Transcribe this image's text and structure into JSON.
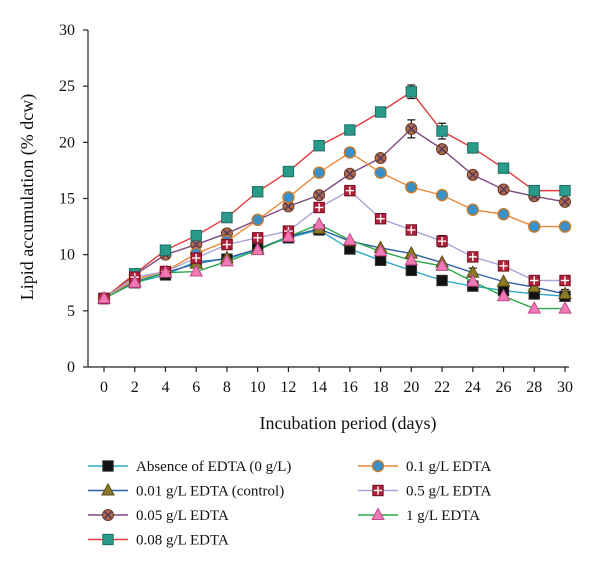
{
  "chart_data": {
    "type": "line",
    "title": "",
    "xlabel": "Incubation period (days)",
    "ylabel": "Lipid accumulation (% dcw)",
    "xlim": [
      0,
      30
    ],
    "ylim": [
      0,
      30
    ],
    "xticks": [
      0,
      2,
      4,
      6,
      8,
      10,
      12,
      14,
      16,
      18,
      20,
      22,
      24,
      26,
      28,
      30
    ],
    "yticks": [
      0,
      5,
      10,
      15,
      20,
      25,
      30
    ],
    "grid": false,
    "legend_position": "bottom",
    "x": [
      0,
      2,
      4,
      6,
      8,
      10,
      12,
      14,
      16,
      18,
      20,
      22,
      24,
      26,
      28,
      30
    ],
    "series": [
      {
        "name": "Absence of EDTA (0 g/L)",
        "marker": "square",
        "line_color": "#2aa9c9",
        "marker_fill": "#111111",
        "marker_stroke": "#333333",
        "values": [
          6.1,
          7.5,
          8.2,
          9.4,
          9.6,
          10.5,
          11.5,
          12.2,
          10.5,
          9.5,
          8.6,
          7.7,
          7.2,
          6.8,
          6.5,
          6.3
        ]
      },
      {
        "name": "0.01 g/L EDTA (control)",
        "marker": "triangle",
        "line_color": "#2f5fa3",
        "marker_fill": "#8b7a2a",
        "marker_stroke": "#5a4a10",
        "values": [
          6.1,
          7.6,
          8.4,
          9.2,
          9.7,
          10.5,
          11.6,
          12.3,
          11.2,
          10.6,
          10.1,
          9.3,
          8.4,
          7.6,
          7.1,
          6.5
        ]
      },
      {
        "name": "0.05 g/L EDTA",
        "marker": "x-circle",
        "line_color": "#7d4a80",
        "marker_fill": "#b06c4a",
        "marker_stroke": "#6a3a28",
        "values": [
          6.1,
          8.2,
          10.0,
          10.9,
          11.9,
          13.1,
          14.3,
          15.3,
          17.2,
          18.6,
          21.2,
          19.4,
          17.1,
          15.8,
          15.2,
          14.7
        ]
      },
      {
        "name": "0.08 g/L EDTA",
        "marker": "square",
        "line_color": "#e03a3a",
        "marker_fill": "#2a9a8a",
        "marker_stroke": "#1e6e62",
        "values": [
          6.1,
          8.3,
          10.4,
          11.7,
          13.3,
          15.6,
          17.4,
          19.7,
          21.1,
          22.7,
          24.5,
          21.0,
          19.5,
          17.7,
          15.7,
          15.7
        ]
      },
      {
        "name": "0.1 g/L EDTA",
        "marker": "circle",
        "line_color": "#e8883a",
        "marker_fill": "#3a90c8",
        "marker_stroke": "#c77a2a",
        "values": [
          6.1,
          7.8,
          8.5,
          10.1,
          11.2,
          13.1,
          15.1,
          17.3,
          19.1,
          17.3,
          16.0,
          15.3,
          14.0,
          13.6,
          12.5,
          12.5
        ]
      },
      {
        "name": "0.5 g/L EDTA",
        "marker": "square-cross",
        "line_color": "#a7a7d8",
        "marker_fill": "#b0203a",
        "marker_stroke": "#7a1020",
        "values": [
          6.1,
          8.0,
          8.5,
          9.7,
          10.9,
          11.5,
          12.1,
          14.2,
          15.7,
          13.2,
          12.2,
          11.2,
          9.8,
          9.0,
          7.7,
          7.7
        ]
      },
      {
        "name": "1 g/L EDTA",
        "marker": "triangle",
        "line_color": "#2aa84a",
        "marker_fill": "#f07ab4",
        "marker_stroke": "#c04a8a",
        "values": [
          6.1,
          7.5,
          8.4,
          8.5,
          9.4,
          10.4,
          11.6,
          12.7,
          11.3,
          10.3,
          9.5,
          9.0,
          7.6,
          6.3,
          5.2,
          5.2
        ]
      }
    ],
    "error_bars": {
      "points": [
        {
          "series": 3,
          "x": 20,
          "err": 0.6
        },
        {
          "series": 3,
          "x": 22,
          "err": 0.7
        },
        {
          "series": 3,
          "x": 8,
          "err": 0.4
        },
        {
          "series": 3,
          "x": 10,
          "err": 0.3
        },
        {
          "series": 3,
          "x": 14,
          "err": 0.3
        },
        {
          "series": 2,
          "x": 20,
          "err": 0.8
        },
        {
          "series": 4,
          "x": 14,
          "err": 0.4
        },
        {
          "series": 4,
          "x": 18,
          "err": 0.3
        },
        {
          "series": 5,
          "x": 22,
          "err": 0.5
        },
        {
          "series": 5,
          "x": 14,
          "err": 0.3
        },
        {
          "series": 1,
          "x": 30,
          "err": 0.4
        },
        {
          "series": 1,
          "x": 24,
          "err": 0.4
        },
        {
          "series": 0,
          "x": 30,
          "err": 0.3
        }
      ]
    },
    "legend": {
      "columns": [
        [
          "Absence of EDTA (0 g/L)",
          "0.01 g/L EDTA (control)",
          "0.05 g/L EDTA",
          "0.08 g/L EDTA"
        ],
        [
          "0.1 g/L EDTA",
          "0.5 g/L EDTA",
          "1 g/L EDTA"
        ]
      ]
    }
  }
}
